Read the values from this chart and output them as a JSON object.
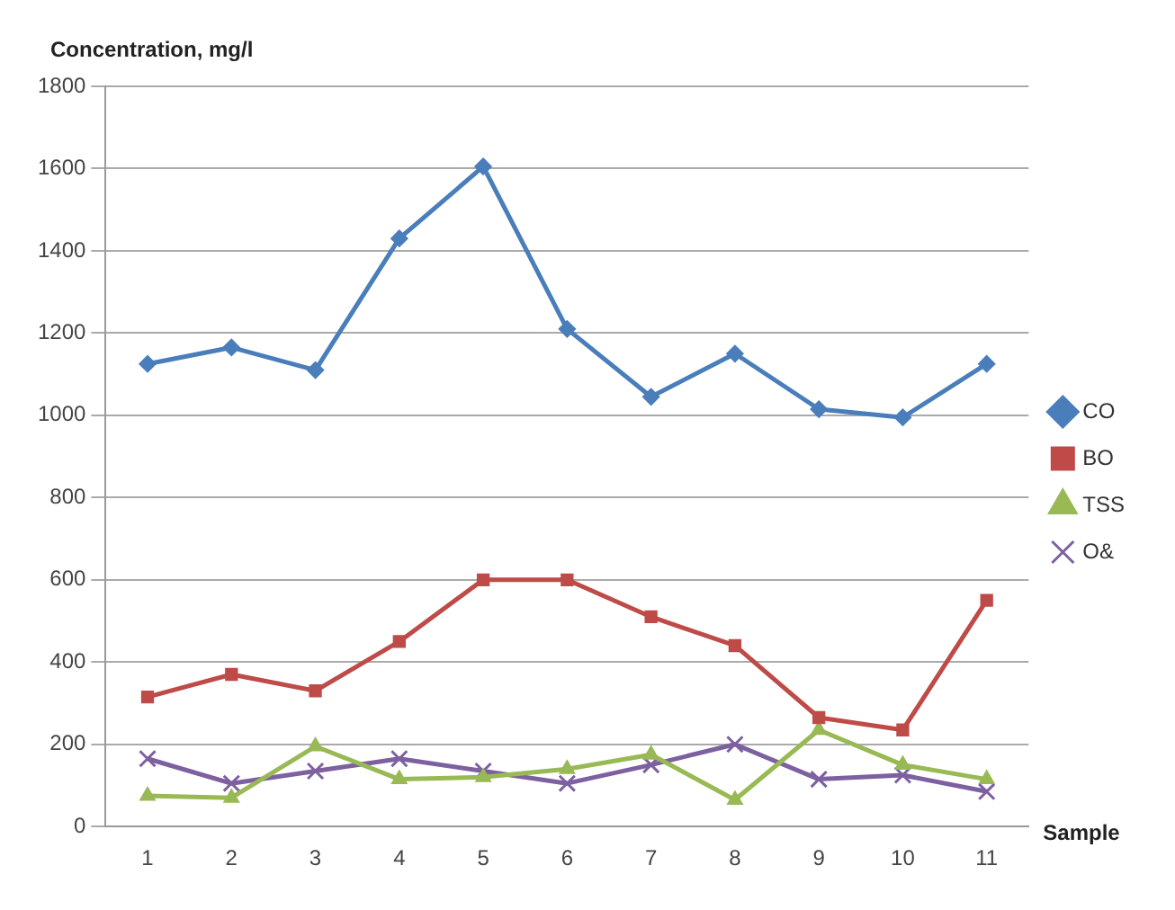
{
  "chart_data": {
    "type": "line",
    "ylabel": "Concentration, mg/l",
    "xlabel": "Sample",
    "categories": [
      "1",
      "2",
      "3",
      "4",
      "5",
      "6",
      "7",
      "8",
      "9",
      "10",
      "11"
    ],
    "series": [
      {
        "name": "CO",
        "color": "#4a7ebb",
        "marker": "diamond",
        "values": [
          1125,
          1165,
          1110,
          1430,
          1605,
          1210,
          1045,
          1150,
          1015,
          995,
          1125
        ]
      },
      {
        "name": "BO",
        "color": "#be4b48",
        "marker": "square",
        "values": [
          315,
          370,
          330,
          450,
          600,
          600,
          510,
          440,
          265,
          235,
          550
        ]
      },
      {
        "name": "TSS",
        "color": "#98b954",
        "marker": "triangle",
        "values": [
          75,
          70,
          195,
          115,
          120,
          140,
          175,
          65,
          235,
          150,
          115
        ]
      },
      {
        "name": "O&",
        "color": "#7d60a0",
        "marker": "cross",
        "values": [
          165,
          105,
          135,
          165,
          135,
          105,
          150,
          200,
          115,
          125,
          85
        ]
      }
    ],
    "ylim": [
      0,
      1800
    ],
    "yticks": [
      0,
      200,
      400,
      600,
      800,
      1000,
      1200,
      1400,
      1600,
      1800
    ],
    "grid": "y",
    "legend": "right"
  }
}
